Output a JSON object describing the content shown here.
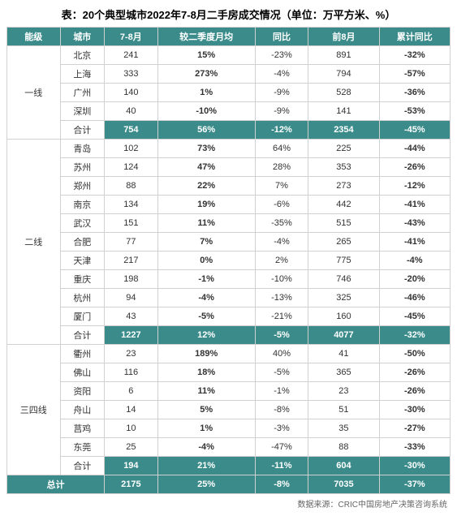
{
  "title": "表：20个典型城市2022年7-8月二手房成交情况（单位：万平方米、%）",
  "source": "数据来源：CRIC中国房地产决策咨询系统",
  "headers": [
    "能级",
    "城市",
    "7-8月",
    "较二季度月均",
    "同比",
    "前8月",
    "累计同比"
  ],
  "groups": [
    {
      "tier": "一线",
      "rows": [
        {
          "城市": "北京",
          "c2": "241",
          "c3": "15%",
          "c4": "-23%",
          "c5": "891",
          "c6": "-32%"
        },
        {
          "城市": "上海",
          "c2": "333",
          "c3": "273%",
          "c4": "-4%",
          "c5": "794",
          "c6": "-57%"
        },
        {
          "城市": "广州",
          "c2": "140",
          "c3": "1%",
          "c4": "-9%",
          "c5": "528",
          "c6": "-36%"
        },
        {
          "城市": "深圳",
          "c2": "40",
          "c3": "-10%",
          "c4": "-9%",
          "c5": "141",
          "c6": "-53%"
        }
      ],
      "subtotal": {
        "城市": "合计",
        "c2": "754",
        "c3": "56%",
        "c4": "-12%",
        "c5": "2354",
        "c6": "-45%"
      }
    },
    {
      "tier": "二线",
      "rows": [
        {
          "城市": "青岛",
          "c2": "102",
          "c3": "73%",
          "c4": "64%",
          "c5": "225",
          "c6": "-44%"
        },
        {
          "城市": "苏州",
          "c2": "124",
          "c3": "47%",
          "c4": "28%",
          "c5": "353",
          "c6": "-26%"
        },
        {
          "城市": "郑州",
          "c2": "88",
          "c3": "22%",
          "c4": "7%",
          "c5": "273",
          "c6": "-12%"
        },
        {
          "城市": "南京",
          "c2": "134",
          "c3": "19%",
          "c4": "-6%",
          "c5": "442",
          "c6": "-41%"
        },
        {
          "城市": "武汉",
          "c2": "151",
          "c3": "11%",
          "c4": "-35%",
          "c5": "515",
          "c6": "-43%"
        },
        {
          "城市": "合肥",
          "c2": "77",
          "c3": "7%",
          "c4": "-4%",
          "c5": "265",
          "c6": "-41%"
        },
        {
          "城市": "天津",
          "c2": "217",
          "c3": "0%",
          "c4": "2%",
          "c5": "775",
          "c6": "-4%"
        },
        {
          "城市": "重庆",
          "c2": "198",
          "c3": "-1%",
          "c4": "-10%",
          "c5": "746",
          "c6": "-20%"
        },
        {
          "城市": "杭州",
          "c2": "94",
          "c3": "-4%",
          "c4": "-13%",
          "c5": "325",
          "c6": "-46%"
        },
        {
          "城市": "厦门",
          "c2": "43",
          "c3": "-5%",
          "c4": "-21%",
          "c5": "160",
          "c6": "-45%"
        }
      ],
      "subtotal": {
        "城市": "合计",
        "c2": "1227",
        "c3": "12%",
        "c4": "-5%",
        "c5": "4077",
        "c6": "-32%"
      }
    },
    {
      "tier": "三四线",
      "rows": [
        {
          "城市": "衢州",
          "c2": "23",
          "c3": "189%",
          "c4": "40%",
          "c5": "41",
          "c6": "-50%"
        },
        {
          "城市": "佛山",
          "c2": "116",
          "c3": "18%",
          "c4": "-5%",
          "c5": "365",
          "c6": "-26%"
        },
        {
          "城市": "资阳",
          "c2": "6",
          "c3": "11%",
          "c4": "-1%",
          "c5": "23",
          "c6": "-26%"
        },
        {
          "城市": "舟山",
          "c2": "14",
          "c3": "5%",
          "c4": "-8%",
          "c5": "51",
          "c6": "-30%"
        },
        {
          "城市": "莒鸡",
          "c2": "10",
          "c3": "1%",
          "c4": "-3%",
          "c5": "35",
          "c6": "-27%"
        },
        {
          "城市": "东莞",
          "c2": "25",
          "c3": "-4%",
          "c4": "-47%",
          "c5": "88",
          "c6": "-33%"
        }
      ],
      "subtotal": {
        "城市": "合计",
        "c2": "194",
        "c3": "21%",
        "c4": "-11%",
        "c5": "604",
        "c6": "-30%"
      }
    }
  ],
  "grand_total": {
    "label": "总计",
    "c2": "2175",
    "c3": "25%",
    "c4": "-8%",
    "c5": "7035",
    "c6": "-37%"
  }
}
